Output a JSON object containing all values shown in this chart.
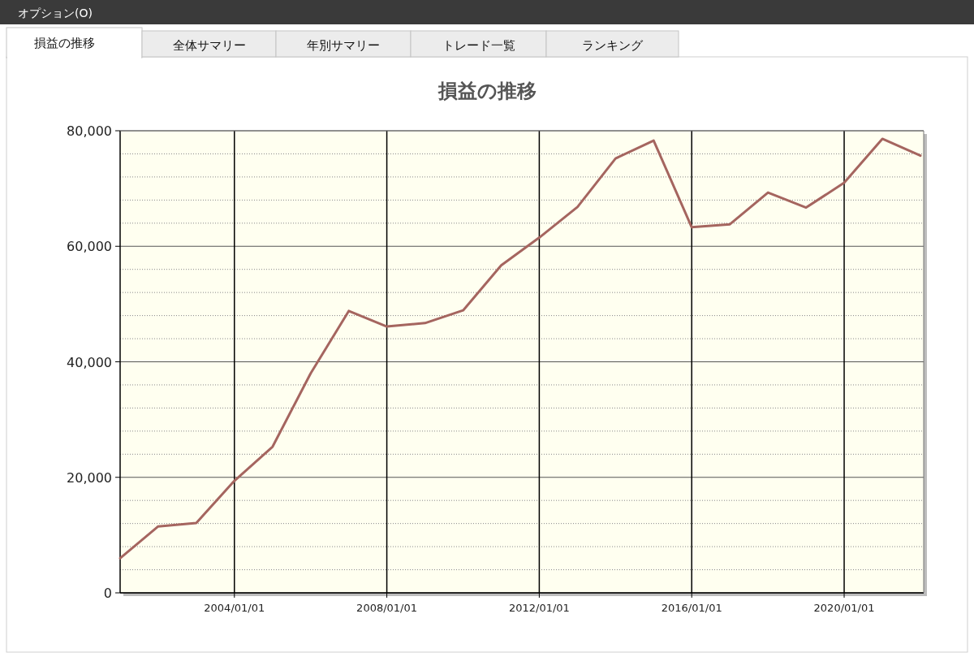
{
  "chart_data": {
    "type": "line",
    "title": "損益の推移",
    "annotations": [
      "オプション(O)",
      "損益の推移",
      "全体サマリー",
      "年別サマリー",
      "トレード一覧",
      "ランキング"
    ],
    "x": [
      "2001-01-01",
      "2002-01-01",
      "2003-01-01",
      "2004-01-01",
      "2005-01-01",
      "2006-01-01",
      "2007-01-01",
      "2008-01-01",
      "2009-01-01",
      "2010-01-01",
      "2011-01-01",
      "2012-01-01",
      "2013-01-01",
      "2014-01-01",
      "2015-01-01",
      "2016-01-01",
      "2017-01-01",
      "2018-01-01",
      "2019-01-01",
      "2020-01-01",
      "2021-01-01",
      "2022-01-01"
    ],
    "series": [
      {
        "color": "#a5655f",
        "values": [
          6000,
          11500,
          12100,
          19400,
          25300,
          38000,
          48800,
          46100,
          46700,
          48900,
          56700,
          61500,
          66800,
          75200,
          78300,
          63300,
          63800,
          69300,
          66700,
          71000,
          78600,
          75700
        ]
      }
    ],
    "xlim": [
      "2001-01-01",
      "2022-02-01"
    ],
    "xticks": [
      {
        "value": "2004-01-01",
        "label": "2004/01/01"
      },
      {
        "value": "2008-01-01",
        "label": "2008/01/01"
      },
      {
        "value": "2012-01-01",
        "label": "2012/01/01"
      },
      {
        "value": "2016-01-01",
        "label": "2016/01/01"
      },
      {
        "value": "2020-01-01",
        "label": "2020/01/01"
      }
    ],
    "ylim": [
      0,
      80000
    ],
    "yticks": [
      {
        "value": 0,
        "label": "0"
      },
      {
        "value": 4000,
        "label": null
      },
      {
        "value": 8000,
        "label": null
      },
      {
        "value": 12000,
        "label": null
      },
      {
        "value": 16000,
        "label": null
      },
      {
        "value": 20000,
        "label": "20,000"
      },
      {
        "value": 24000,
        "label": null
      },
      {
        "value": 28000,
        "label": null
      },
      {
        "value": 32000,
        "label": null
      },
      {
        "value": 36000,
        "label": null
      },
      {
        "value": 40000,
        "label": "40,000"
      },
      {
        "value": 44000,
        "label": null
      },
      {
        "value": 48000,
        "label": null
      },
      {
        "value": 52000,
        "label": null
      },
      {
        "value": 56000,
        "label": null
      },
      {
        "value": 60000,
        "label": "60,000"
      },
      {
        "value": 64000,
        "label": null
      },
      {
        "value": 68000,
        "label": null
      },
      {
        "value": 72000,
        "label": null
      },
      {
        "value": 76000,
        "label": null
      },
      {
        "value": 80000,
        "label": "80,000"
      }
    ],
    "grid": true
  }
}
